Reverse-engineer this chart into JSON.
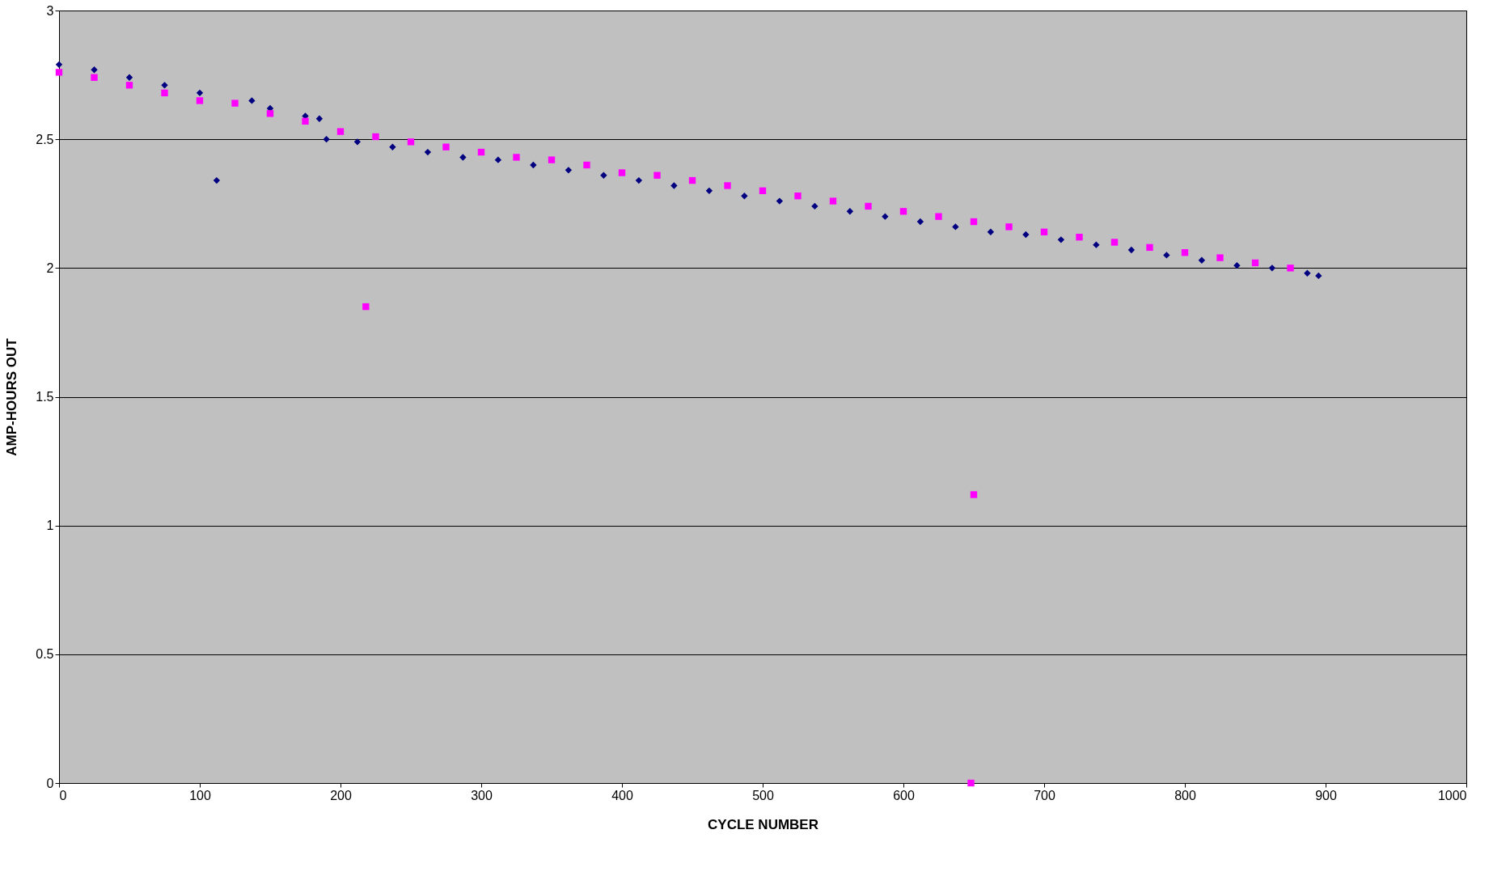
{
  "chart_data": {
    "type": "scatter",
    "xlabel": "CYCLE NUMBER",
    "ylabel": "AMP-HOURS OUT",
    "xlim": [
      0,
      1000
    ],
    "xticks": [
      0,
      100,
      200,
      300,
      400,
      500,
      600,
      700,
      800,
      900,
      1000
    ],
    "ylim": [
      0,
      3
    ],
    "yticks": [
      0,
      0.5,
      1,
      1.5,
      2,
      2.5,
      3
    ],
    "grid": "y",
    "series": [
      {
        "color": "#000080",
        "marker": "diamond",
        "x": [
          0,
          25,
          50,
          75,
          100,
          112,
          137,
          150,
          175,
          185,
          190,
          212,
          237,
          262,
          287,
          312,
          337,
          362,
          387,
          412,
          437,
          462,
          487,
          512,
          537,
          562,
          587,
          612,
          637,
          662,
          687,
          712,
          737,
          762,
          787,
          812,
          837,
          862,
          887,
          895
        ],
        "values": [
          2.79,
          2.77,
          2.74,
          2.71,
          2.68,
          2.34,
          2.65,
          2.62,
          2.59,
          2.58,
          2.5,
          2.49,
          2.47,
          2.45,
          2.43,
          2.42,
          2.4,
          2.38,
          2.36,
          2.34,
          2.32,
          2.3,
          2.28,
          2.26,
          2.24,
          2.22,
          2.2,
          2.18,
          2.16,
          2.14,
          2.13,
          2.11,
          2.09,
          2.07,
          2.05,
          2.03,
          2.01,
          2.0,
          1.98,
          1.97
        ]
      },
      {
        "color": "#ff00ff",
        "marker": "square",
        "x": [
          0,
          25,
          50,
          75,
          100,
          125,
          150,
          175,
          200,
          218,
          225,
          250,
          275,
          300,
          325,
          350,
          375,
          400,
          425,
          450,
          475,
          500,
          525,
          550,
          575,
          600,
          625,
          648,
          650,
          650,
          675,
          700,
          725,
          750,
          775,
          800,
          825,
          850,
          875
        ],
        "values": [
          2.76,
          2.74,
          2.71,
          2.68,
          2.65,
          2.64,
          2.6,
          2.57,
          2.53,
          1.85,
          2.51,
          2.49,
          2.47,
          2.45,
          2.43,
          2.42,
          2.4,
          2.37,
          2.36,
          2.34,
          2.32,
          2.3,
          2.28,
          2.26,
          2.24,
          2.22,
          2.2,
          0,
          1.12,
          2.18,
          2.16,
          2.14,
          2.12,
          2.1,
          2.08,
          2.06,
          2.04,
          2.02,
          2.0
        ]
      }
    ]
  }
}
